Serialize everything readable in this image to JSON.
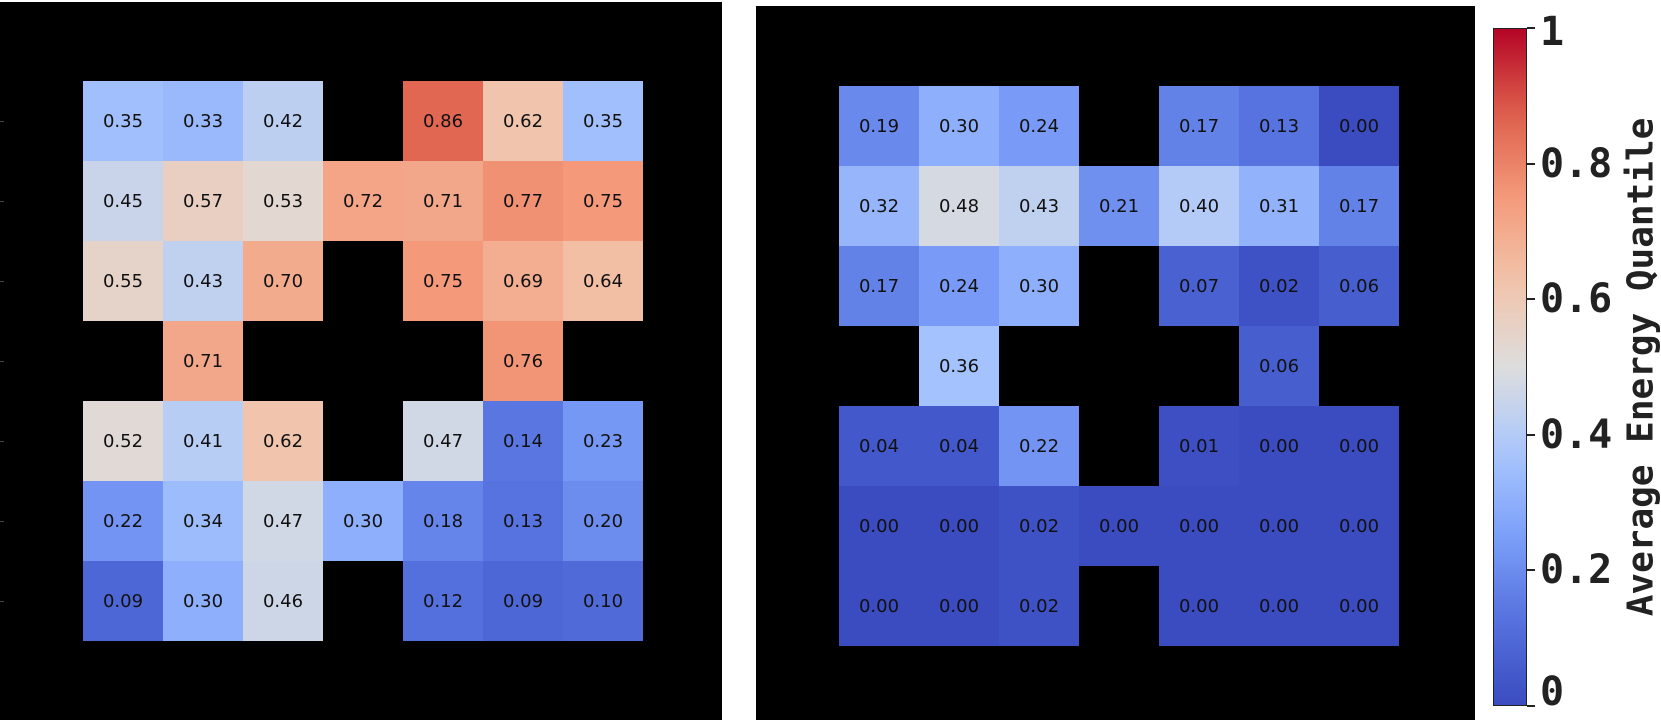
{
  "chart_data": [
    {
      "type": "heatmap",
      "rows": 7,
      "cols": 7,
      "values": [
        [
          0.35,
          0.33,
          0.42,
          null,
          0.86,
          0.62,
          0.35
        ],
        [
          0.45,
          0.57,
          0.53,
          0.72,
          0.71,
          0.77,
          0.75
        ],
        [
          0.55,
          0.43,
          0.7,
          null,
          0.75,
          0.69,
          0.64
        ],
        [
          null,
          0.71,
          null,
          null,
          null,
          0.76,
          null
        ],
        [
          0.52,
          0.41,
          0.62,
          null,
          0.47,
          0.14,
          0.23
        ],
        [
          0.22,
          0.34,
          0.47,
          0.3,
          0.18,
          0.13,
          0.2
        ],
        [
          0.09,
          0.3,
          0.46,
          null,
          0.12,
          0.09,
          0.1
        ]
      ],
      "labels": [
        [
          "0.35",
          "0.33",
          "0.42",
          null,
          "0.86",
          "0.62",
          "0.35"
        ],
        [
          "0.45",
          "0.57",
          "0.53",
          "0.72",
          "0.71",
          "0.77",
          "0.75"
        ],
        [
          "0.55",
          "0.43",
          "0.70",
          null,
          "0.75",
          "0.69",
          "0.64"
        ],
        [
          null,
          "0.71",
          null,
          null,
          null,
          "0.76",
          null
        ],
        [
          "0.52",
          "0.41",
          "0.62",
          null,
          "0.47",
          "0.14",
          "0.23"
        ],
        [
          "0.22",
          "0.34",
          "0.47",
          "0.30",
          "0.18",
          "0.13",
          "0.20"
        ],
        [
          "0.09",
          "0.30",
          "0.46",
          null,
          "0.12",
          "0.09",
          "0.10"
        ]
      ],
      "background": "#000000"
    },
    {
      "type": "heatmap",
      "rows": 7,
      "cols": 7,
      "values": [
        [
          0.19,
          0.3,
          0.24,
          null,
          0.17,
          0.13,
          0.0
        ],
        [
          0.32,
          0.48,
          0.43,
          0.21,
          0.4,
          0.31,
          0.17
        ],
        [
          0.17,
          0.24,
          0.3,
          null,
          0.07,
          0.02,
          0.06
        ],
        [
          null,
          0.36,
          null,
          null,
          null,
          0.06,
          null
        ],
        [
          0.04,
          0.04,
          0.22,
          null,
          0.01,
          0.0,
          0.0
        ],
        [
          0.0,
          0.0,
          0.02,
          0.0,
          0.0,
          0.0,
          0.0
        ],
        [
          0.0,
          0.0,
          0.02,
          null,
          0.0,
          0.0,
          0.0
        ]
      ],
      "labels": [
        [
          "0.19",
          "0.30",
          "0.24",
          null,
          "0.17",
          "0.13",
          "0.00"
        ],
        [
          "0.32",
          "0.48",
          "0.43",
          "0.21",
          "0.40",
          "0.31",
          "0.17"
        ],
        [
          "0.17",
          "0.24",
          "0.30",
          null,
          "0.07",
          "0.02",
          "0.06"
        ],
        [
          null,
          "0.36",
          null,
          null,
          null,
          "0.06",
          null
        ],
        [
          "0.04",
          "0.04",
          "0.22",
          null,
          "0.01",
          "0.00",
          "0.00"
        ],
        [
          "0.00",
          "0.00",
          "0.02",
          "0.00",
          "0.00",
          "0.00",
          "0.00"
        ],
        [
          "0.00",
          "0.00",
          "0.02",
          null,
          "0.00",
          "0.00",
          "0.00"
        ]
      ],
      "background": "#000000"
    }
  ],
  "colorbar": {
    "label": "Average Energy Quantile",
    "range": [
      0,
      1
    ],
    "colormap": "coolwarm",
    "ticks": [
      0,
      0.2,
      0.4,
      0.6,
      0.8,
      1
    ],
    "tick_labels": [
      "0",
      "0.2",
      "0.4",
      "0.6",
      "0.8",
      "1"
    ],
    "colors": [
      "#3b4cc0",
      "#dddddd",
      "#b40426"
    ]
  }
}
